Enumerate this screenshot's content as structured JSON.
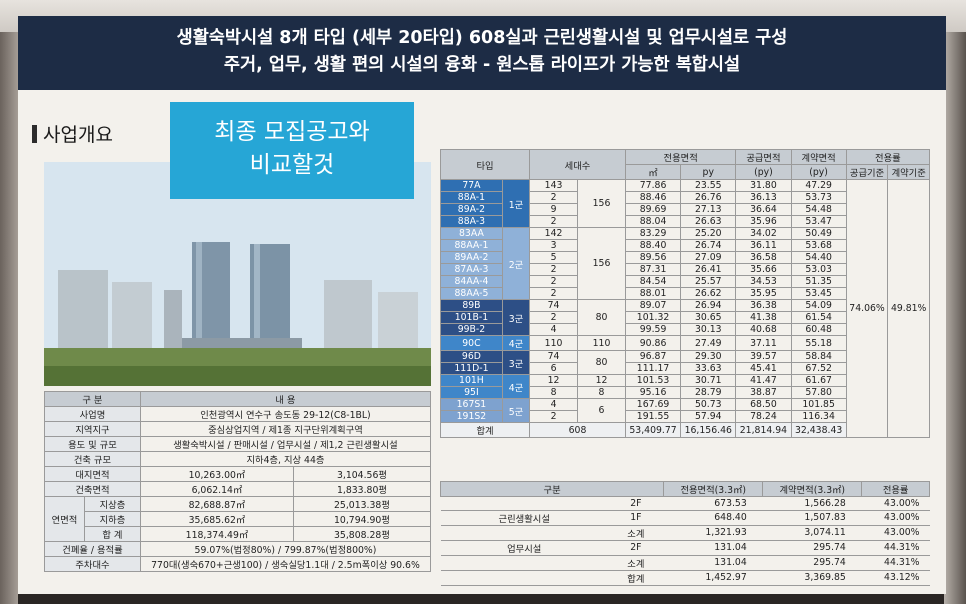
{
  "header": {
    "line1": "생활숙박시설 8개 타입 (세부 20타입) 608실과 근린생활시설 및 업무시설로 구성",
    "line2": "주거, 업무, 생활 편의 시설의 융화 - 원스톱 라이프가 가능한 복합시설"
  },
  "section_title": "사업개요",
  "note": {
    "line1": "최종 모집공고와",
    "line2": "비교할것"
  },
  "overview": {
    "header": {
      "c1": "구 분",
      "c2": "내 용"
    },
    "rows": [
      {
        "label": "사업명",
        "value": "인천광역시 연수구 송도동 29-12(C8-1BL)"
      },
      {
        "label": "지역지구",
        "value": "중심상업지역 / 제1종 지구단위계획구역"
      },
      {
        "label": "용도 및 규모",
        "value": "생활숙박시설 / 판매시설 / 업무시설 / 제1,2 근린생활시설"
      },
      {
        "label": "건축 규모",
        "value": "지하4층, 지상 44층"
      }
    ],
    "site_area": {
      "label": "대지면적",
      "v1": "10,263.00㎡",
      "v2": "3,104.56평"
    },
    "building_area": {
      "label": "건축면적",
      "v1": "6,062.14㎡",
      "v2": "1,833.80평"
    },
    "floor_area": {
      "label": "연면적",
      "above": {
        "label": "지상층",
        "v1": "82,688.87㎡",
        "v2": "25,013.38평"
      },
      "below": {
        "label": "지하층",
        "v1": "35,685.62㎡",
        "v2": "10,794.90평"
      },
      "total": {
        "label": "합 계",
        "v1": "118,374.49㎡",
        "v2": "35,808.28평"
      }
    },
    "ratio": {
      "label": "건폐율 / 용적률",
      "value": "59.07%(법정80%) / 799.87%(법정800%)"
    },
    "parking": {
      "label": "주차대수",
      "value": "770대(생숙670+근생100) / 생숙실당1.1대 / 2.5m폭이상 90.6%"
    }
  },
  "unit_table": {
    "headers": {
      "type": "타입",
      "units": "세대수",
      "exclusive": "전용면적",
      "exclusive_m2": "㎡",
      "exclusive_py": "py",
      "supply": "공급면적",
      "supply_unit": "(py)",
      "contract": "계약면적",
      "contract_unit": "(py)",
      "ratio": "전용률",
      "ratio_supply": "공급기준",
      "ratio_contract": "계약기준"
    },
    "groups": [
      {
        "label": "1군",
        "subtotal": "156",
        "rows": [
          {
            "type": "77A",
            "units": "143",
            "m2": "77.86",
            "py": "23.55",
            "supply": "31.80",
            "contract": "47.29"
          },
          {
            "type": "88A-1",
            "units": "2",
            "m2": "88.46",
            "py": "26.76",
            "supply": "36.13",
            "contract": "53.73"
          },
          {
            "type": "89A-2",
            "units": "9",
            "m2": "89.69",
            "py": "27.13",
            "supply": "36.64",
            "contract": "54.48"
          },
          {
            "type": "88A-3",
            "units": "2",
            "m2": "88.04",
            "py": "26.63",
            "supply": "35.96",
            "contract": "53.47"
          }
        ]
      },
      {
        "label": "2군",
        "subtotal": "156",
        "rows": [
          {
            "type": "83AA",
            "units": "142",
            "m2": "83.29",
            "py": "25.20",
            "supply": "34.02",
            "contract": "50.49"
          },
          {
            "type": "88AA-1",
            "units": "3",
            "m2": "88.40",
            "py": "26.74",
            "supply": "36.11",
            "contract": "53.68"
          },
          {
            "type": "89AA-2",
            "units": "5",
            "m2": "89.56",
            "py": "27.09",
            "supply": "36.58",
            "contract": "54.40"
          },
          {
            "type": "87AA-3",
            "units": "2",
            "m2": "87.31",
            "py": "26.41",
            "supply": "35.66",
            "contract": "53.03"
          },
          {
            "type": "84AA-4",
            "units": "2",
            "m2": "84.54",
            "py": "25.57",
            "supply": "34.53",
            "contract": "51.35"
          },
          {
            "type": "88AA-5",
            "units": "2",
            "m2": "88.01",
            "py": "26.62",
            "supply": "35.95",
            "contract": "53.45"
          }
        ]
      },
      {
        "label": "3군",
        "subtotal": "80",
        "rows": [
          {
            "type": "89B",
            "units": "74",
            "m2": "89.07",
            "py": "26.94",
            "supply": "36.38",
            "contract": "54.09"
          },
          {
            "type": "101B-1",
            "units": "2",
            "m2": "101.32",
            "py": "30.65",
            "supply": "41.38",
            "contract": "61.54"
          },
          {
            "type": "99B-2",
            "units": "4",
            "m2": "99.59",
            "py": "30.13",
            "supply": "40.68",
            "contract": "60.48"
          }
        ]
      },
      {
        "label": "4군",
        "subtotal": "110",
        "rows": [
          {
            "type": "90C",
            "units": "110",
            "m2": "90.86",
            "py": "27.49",
            "supply": "37.11",
            "contract": "55.18"
          }
        ]
      },
      {
        "label": "3군",
        "subtotal": "80",
        "rows": [
          {
            "type": "96D",
            "units": "74",
            "m2": "96.87",
            "py": "29.30",
            "supply": "39.57",
            "contract": "58.84"
          },
          {
            "type": "111D-1",
            "units": "6",
            "m2": "111.17",
            "py": "33.63",
            "supply": "45.41",
            "contract": "67.52"
          }
        ]
      },
      {
        "label": "4군",
        "subtotal": "",
        "rows": [
          {
            "type": "101H",
            "units": "12",
            "sub": "12",
            "m2": "101.53",
            "py": "30.71",
            "supply": "41.47",
            "contract": "61.67"
          },
          {
            "type": "95I",
            "units": "8",
            "sub": "8",
            "m2": "95.16",
            "py": "28.79",
            "supply": "38.87",
            "contract": "57.80"
          }
        ]
      },
      {
        "label": "5군",
        "subtotal": "6",
        "rows": [
          {
            "type": "167S1",
            "units": "4",
            "m2": "167.69",
            "py": "50.73",
            "supply": "68.50",
            "contract": "101.85"
          },
          {
            "type": "191S2",
            "units": "2",
            "m2": "191.55",
            "py": "57.94",
            "supply": "78.24",
            "contract": "116.34"
          }
        ]
      }
    ],
    "ratio_supply": "74.06%",
    "ratio_contract": "49.81%",
    "total": {
      "label": "합계",
      "units": "608",
      "m2": "53,409.77",
      "py": "16,156.46",
      "supply": "21,814.94",
      "contract": "32,438.43"
    }
  },
  "commercial_table": {
    "headers": {
      "c1": "구분",
      "c2": "전용면적(3.3㎡)",
      "c3": "계약면적(3.3㎡)",
      "c4": "전용률"
    },
    "rows": [
      {
        "cat": "",
        "floor": "2F",
        "excl": "673.53",
        "contract": "1,566.28",
        "ratio": "43.00%"
      },
      {
        "cat": "근린생활시설",
        "floor": "1F",
        "excl": "648.40",
        "contract": "1,507.83",
        "ratio": "43.00%"
      },
      {
        "cat": "",
        "floor": "소계",
        "excl": "1,321.93",
        "contract": "3,074.11",
        "ratio": "43.00%"
      },
      {
        "cat": "업무시설",
        "floor": "2F",
        "excl": "131.04",
        "contract": "295.74",
        "ratio": "44.31%"
      },
      {
        "cat": "",
        "floor": "소계",
        "excl": "131.04",
        "contract": "295.74",
        "ratio": "44.31%"
      },
      {
        "cat": "",
        "floor": "합계",
        "excl": "1,452.97",
        "contract": "3,369.85",
        "ratio": "43.12%"
      }
    ]
  }
}
